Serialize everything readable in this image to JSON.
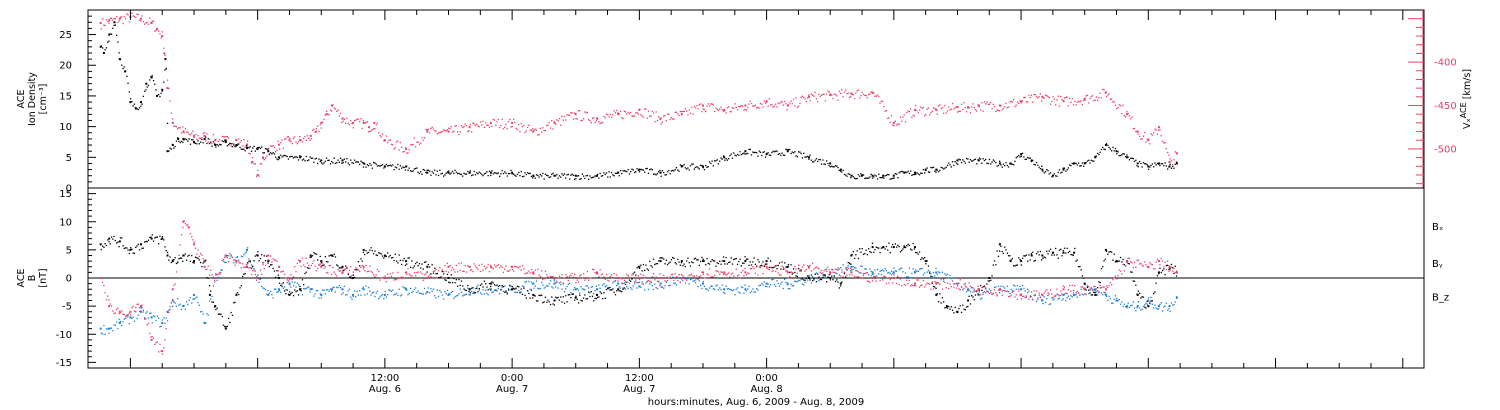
{
  "chart_data": [
    {
      "type": "scatter",
      "panel": "top",
      "ylabel_lines": [
        "ACE",
        "Ion Density",
        "[cm⁻³]"
      ],
      "ylim": [
        0,
        29
      ],
      "yticks": [
        0,
        5,
        10,
        15,
        20,
        25
      ],
      "y2label_main": "Vₓ",
      "y2label_sup": "ACE",
      "y2label_unit": "[km/s]",
      "y2lim": [
        -545,
        -340
      ],
      "y2ticks": [
        -400,
        -450,
        -500
      ],
      "y2color": "#e8406a",
      "series": [
        {
          "axis": "left",
          "color": "#000000",
          "x": [
            -14.8,
            -14.5,
            -14,
            -13.5,
            -13,
            -12.5,
            -12,
            -11.5,
            -11,
            -10.5,
            -10,
            -9.5,
            -9,
            -8.7,
            -8.5,
            -8,
            -7.5,
            -7,
            -6,
            -5,
            -4,
            -3,
            -2,
            -1,
            0,
            1,
            2,
            4,
            6,
            8,
            10,
            12,
            14,
            16,
            18,
            20,
            22,
            24,
            26,
            28,
            30,
            32,
            34,
            36,
            38,
            40,
            42,
            44,
            46,
            48,
            50,
            52,
            54,
            55,
            56,
            57,
            58,
            59,
            60,
            61,
            62,
            63,
            64,
            66,
            68,
            70,
            71,
            72,
            73,
            74,
            75,
            76,
            77,
            78,
            79,
            80,
            81,
            82,
            83,
            84,
            85,
            86,
            86.7
          ],
          "y": [
            23,
            22,
            25,
            27,
            21,
            19,
            14,
            13,
            14,
            17,
            18,
            15,
            16,
            21,
            6,
            7,
            8,
            8,
            7.5,
            8,
            7,
            7.5,
            7,
            6.5,
            6.5,
            6,
            5,
            5,
            4.5,
            4.5,
            4,
            3.5,
            3.5,
            2.5,
            2.5,
            2.5,
            2.5,
            2.5,
            2,
            2,
            2,
            2,
            2.5,
            3,
            2.5,
            3.5,
            3.5,
            5,
            6,
            5.5,
            6,
            5,
            4,
            3,
            2,
            2,
            2,
            2,
            2,
            2.5,
            2.5,
            3,
            3,
            4.5,
            4.5,
            4,
            4,
            5.5,
            4.5,
            3,
            2,
            3,
            4,
            4,
            5,
            7,
            6,
            5,
            4,
            3.5,
            4,
            3.5,
            4
          ]
        },
        {
          "axis": "right",
          "color": "#e8406a",
          "x": [
            -14.8,
            -14,
            -13,
            -12,
            -11,
            -10,
            -9.5,
            -9,
            -8.8,
            -8.5,
            -8,
            -7,
            -6,
            -5,
            -4,
            -3,
            -2,
            -1,
            -0.5,
            0,
            0.5,
            1,
            2,
            3,
            4,
            5,
            5.5,
            6,
            6.5,
            7,
            8,
            9,
            10,
            10.5,
            11,
            12,
            14,
            16,
            18,
            20,
            22,
            24,
            26,
            28,
            30,
            32,
            34,
            36,
            38,
            40,
            42,
            44,
            46,
            48,
            50,
            52,
            54,
            56,
            58,
            60,
            62,
            64,
            66,
            67,
            68,
            70,
            72,
            74,
            76,
            78,
            80,
            82,
            83,
            84,
            85,
            86,
            86.7
          ],
          "y": [
            -355,
            -352,
            -350,
            -348,
            -350,
            -355,
            -362,
            -370,
            -390,
            -430,
            -470,
            -480,
            -485,
            -485,
            -490,
            -490,
            -490,
            -495,
            -515,
            -530,
            -510,
            -500,
            -495,
            -490,
            -490,
            -485,
            -480,
            -470,
            -460,
            -450,
            -465,
            -470,
            -470,
            -475,
            -470,
            -490,
            -500,
            -480,
            -480,
            -475,
            -470,
            -470,
            -480,
            -470,
            -460,
            -465,
            -460,
            -455,
            -465,
            -460,
            -450,
            -455,
            -450,
            -445,
            -450,
            -440,
            -438,
            -436,
            -435,
            -470,
            -455,
            -455,
            -452,
            -452,
            -450,
            -450,
            -445,
            -440,
            -445,
            -442,
            -435,
            -460,
            -480,
            -490,
            -475,
            -515,
            -505
          ]
        }
      ]
    },
    {
      "type": "scatter",
      "panel": "bottom",
      "ylabel_lines": [
        "ACE",
        "B",
        "[nT]"
      ],
      "ylim": [
        -16,
        16
      ],
      "yticks": [
        -15,
        -10,
        -5,
        0,
        5,
        10,
        15
      ],
      "xlim": [
        -16,
        110
      ],
      "xticks": [
        12,
        24,
        36,
        48
      ],
      "xtick_labels": [
        [
          "12:00",
          "Aug. 6"
        ],
        [
          "0:00",
          "Aug. 7"
        ],
        [
          "12:00",
          "Aug. 7"
        ],
        [
          "0:00",
          "Aug. 8"
        ]
      ],
      "xlabel": "hours:minutes, Aug.  6, 2009 - Aug.  8, 2009",
      "series": [
        {
          "name": "Bₓ",
          "color": "#000000",
          "x": [
            -14.8,
            -14,
            -13,
            -12,
            -11,
            -10,
            -9,
            -8.5,
            -8,
            -7,
            -6,
            -5,
            -4.5,
            -4,
            -3,
            -2,
            -1,
            0,
            1,
            2,
            3,
            4,
            5,
            6,
            7,
            8,
            9,
            10,
            12,
            14,
            16,
            18,
            20,
            22,
            24,
            26,
            28,
            30,
            32,
            34,
            36,
            38,
            40,
            42,
            44,
            46,
            48,
            50,
            52,
            54,
            55,
            56,
            58,
            59,
            60,
            61,
            62,
            63,
            64,
            65,
            66,
            67,
            68,
            69,
            70,
            71,
            72,
            73,
            74,
            75,
            76,
            77,
            78,
            79,
            80,
            81,
            82,
            83,
            84,
            85,
            86,
            86.7
          ],
          "y": [
            6,
            7,
            6.5,
            5,
            6,
            7,
            7,
            4,
            3,
            4,
            3,
            3,
            -3,
            -5,
            -9,
            -3,
            2,
            4,
            3,
            0,
            -3,
            -2,
            4,
            3,
            4,
            2,
            0,
            5,
            4,
            3,
            2,
            0,
            -2,
            -1,
            -2,
            -3,
            -4,
            -3.5,
            -3,
            -2,
            2,
            3,
            3,
            3,
            3,
            3,
            3,
            2,
            0,
            0,
            -1,
            4,
            5.5,
            5.5,
            5.5,
            5.5,
            5.5,
            3,
            -3,
            -5,
            -6,
            -4,
            -2,
            0,
            6,
            3,
            3,
            4,
            4,
            4.5,
            4.5,
            4.5,
            -1,
            -3,
            5,
            3,
            3,
            -3,
            -5,
            1,
            2,
            1
          ]
        },
        {
          "name": "Bᵧ",
          "color": "#1a7ed8",
          "x": [
            -14.8,
            -14,
            -13,
            -12,
            -11,
            -10,
            -9,
            -8.5,
            -8,
            -7,
            -6,
            -5,
            -4,
            -3,
            -2,
            -1,
            0,
            1,
            2,
            3,
            4,
            5,
            6,
            7,
            8,
            9,
            10,
            12,
            14,
            16,
            18,
            20,
            22,
            24,
            26,
            28,
            30,
            32,
            34,
            36,
            38,
            40,
            42,
            44,
            46,
            48,
            50,
            52,
            54,
            56,
            58,
            60,
            62,
            64,
            66,
            67,
            68,
            70,
            72,
            74,
            76,
            77,
            78,
            79,
            80,
            81,
            82,
            83,
            84,
            85,
            86,
            86.7
          ],
          "y": [
            -9,
            -9,
            -8,
            -7,
            -6,
            -7,
            -8,
            -6,
            -4,
            -5,
            -3,
            -8,
            0,
            4,
            3,
            5,
            0,
            -3,
            -2,
            -1,
            -2,
            -2,
            -3,
            -2,
            -2,
            -3,
            -2,
            -3,
            -2,
            -2.5,
            -3,
            -2,
            -2,
            -2,
            -1,
            -1,
            -2,
            -2,
            -1,
            -1.5,
            -1,
            0,
            -1,
            -2,
            -2,
            -1,
            -1,
            0,
            1,
            2,
            1,
            1,
            1,
            1,
            -1,
            -2,
            -3,
            -2,
            -2,
            -4,
            -3,
            -3,
            -2,
            -2,
            -3,
            -4,
            -5,
            -5,
            -4,
            -5,
            -5,
            -3.5
          ]
        },
        {
          "name": "B_z",
          "color": "#e8406a",
          "x": [
            -14.8,
            -14,
            -13,
            -12,
            -11,
            -10,
            -9,
            -8,
            -7,
            -6.5,
            -6,
            -5,
            -4,
            -3,
            -2,
            -1,
            0,
            1,
            2,
            3,
            4,
            6,
            8,
            10,
            12,
            14,
            16,
            18,
            20,
            22,
            24,
            26,
            28,
            30,
            32,
            34,
            36,
            38,
            40,
            42,
            44,
            46,
            48,
            50,
            52,
            54,
            56,
            58,
            60,
            62,
            64,
            66,
            68,
            70,
            72,
            74,
            76,
            78,
            80,
            82,
            84,
            85,
            86,
            86.7
          ],
          "y": [
            0,
            -5,
            -6,
            -6,
            -5,
            -11,
            -13,
            -2,
            10,
            9,
            6,
            2,
            0,
            4,
            3,
            2,
            0,
            4,
            2,
            0,
            3,
            2,
            1,
            2,
            0,
            1,
            0,
            2,
            2,
            2,
            2,
            1,
            0,
            0,
            1,
            0,
            0,
            0,
            0,
            1,
            1,
            1,
            2,
            1,
            2,
            1,
            1,
            0,
            0,
            -1,
            -1,
            -1,
            -2,
            -2,
            -3,
            -3,
            -2,
            -2,
            -2,
            3,
            2,
            3,
            2,
            1
          ]
        }
      ]
    }
  ]
}
